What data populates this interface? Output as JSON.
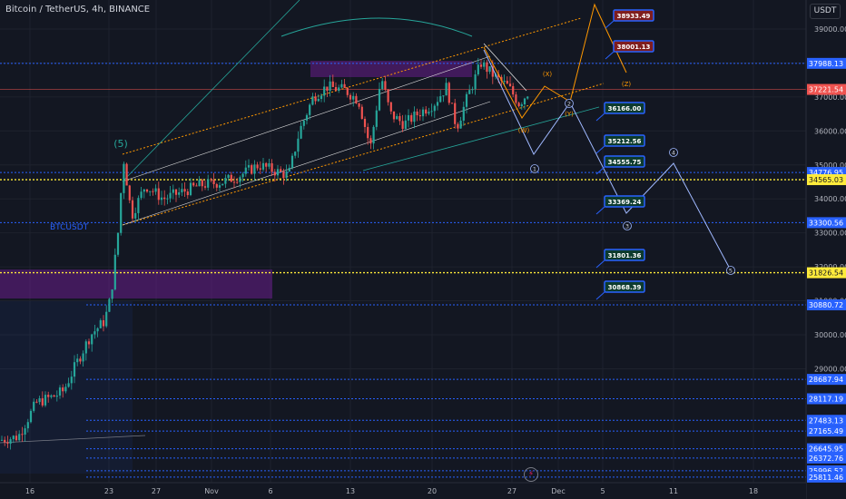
{
  "header": {
    "title": "Bitcoin / TetherUS, 4h, BINANCE",
    "currency": "USDT",
    "watermark": "BTCUSDT",
    "wave_label": "(5)"
  },
  "colors": {
    "up": "#26a69a",
    "down": "#ef5350",
    "level": "#2962ff",
    "yellow": "#ffeb3b",
    "purple_zone": "#7b1fa2",
    "orange": "#ff9800",
    "projection": "#9fb8ff",
    "bg": "#131722"
  },
  "chart_data": {
    "type": "candlestick",
    "title": "Bitcoin / TetherUS, 4h, BINANCE",
    "y_axis": {
      "ticks": [
        29000,
        30000,
        31000,
        32000,
        33000,
        34000,
        35000,
        36000,
        37000,
        38000,
        39000
      ],
      "tick_labels": [
        "29000.00",
        "30000.00",
        "31000.00",
        "32000.00",
        "33000.00",
        "34000.00",
        "35000.00",
        "36000.00",
        "37000.00",
        "38000.00",
        "39000.00"
      ]
    },
    "x_axis": {
      "ticks": [
        "16",
        "23",
        "27",
        "Nov",
        "6",
        "13",
        "20",
        "27",
        "Dec",
        "5",
        "11",
        "18"
      ]
    },
    "price_path": [
      [
        0,
        26900
      ],
      [
        20,
        27000
      ],
      [
        40,
        28000
      ],
      [
        60,
        28200
      ],
      [
        70,
        28350
      ],
      [
        85,
        29200
      ],
      [
        100,
        30000
      ],
      [
        115,
        30400
      ],
      [
        122,
        31100
      ],
      [
        130,
        33000
      ],
      [
        136,
        35200
      ],
      [
        145,
        33500
      ],
      [
        160,
        34400
      ],
      [
        180,
        34000
      ],
      [
        200,
        34200
      ],
      [
        220,
        34400
      ],
      [
        245,
        34500
      ],
      [
        265,
        34700
      ],
      [
        285,
        35000
      ],
      [
        305,
        34800
      ],
      [
        318,
        34700
      ],
      [
        330,
        36000
      ],
      [
        345,
        37000
      ],
      [
        360,
        37300
      ],
      [
        380,
        37200
      ],
      [
        395,
        36900
      ],
      [
        408,
        35500
      ],
      [
        420,
        37600
      ],
      [
        430,
        36500
      ],
      [
        445,
        36200
      ],
      [
        460,
        36500
      ],
      [
        478,
        36800
      ],
      [
        492,
        37300
      ],
      [
        503,
        36100
      ],
      [
        515,
        37000
      ],
      [
        530,
        38000
      ],
      [
        545,
        37600
      ],
      [
        560,
        37300
      ],
      [
        572,
        36800
      ],
      [
        582,
        37150
      ]
    ],
    "horizontal_levels": [
      {
        "value": "37988.13",
        "color": "level"
      },
      {
        "value": "37221.54",
        "color": "down"
      },
      {
        "value": "34776.95",
        "color": "level"
      },
      {
        "value": "34565.03",
        "color": "yellow"
      },
      {
        "value": "33300.56",
        "color": "level"
      },
      {
        "value": "31826.54",
        "color": "yellow"
      },
      {
        "value": "30880.72",
        "color": "level"
      },
      {
        "value": "28687.94",
        "color": "level"
      },
      {
        "value": "28117.19",
        "color": "level"
      },
      {
        "value": "27483.13",
        "color": "level"
      },
      {
        "value": "27165.49",
        "color": "level"
      },
      {
        "value": "26645.95",
        "color": "level"
      },
      {
        "value": "26372.76",
        "color": "level"
      },
      {
        "value": "25996.52",
        "color": "level"
      },
      {
        "value": "25811.46",
        "color": "level"
      }
    ],
    "target_labels": [
      "38933.49",
      "38001.13",
      "36166.00",
      "35212.56",
      "34555.75",
      "33369.24",
      "31801.36",
      "30868.39"
    ],
    "wave_labels": [
      "(X)",
      "(Z)",
      "(Y)",
      "(W)",
      "1",
      "2",
      "3",
      "4",
      "5"
    ]
  }
}
